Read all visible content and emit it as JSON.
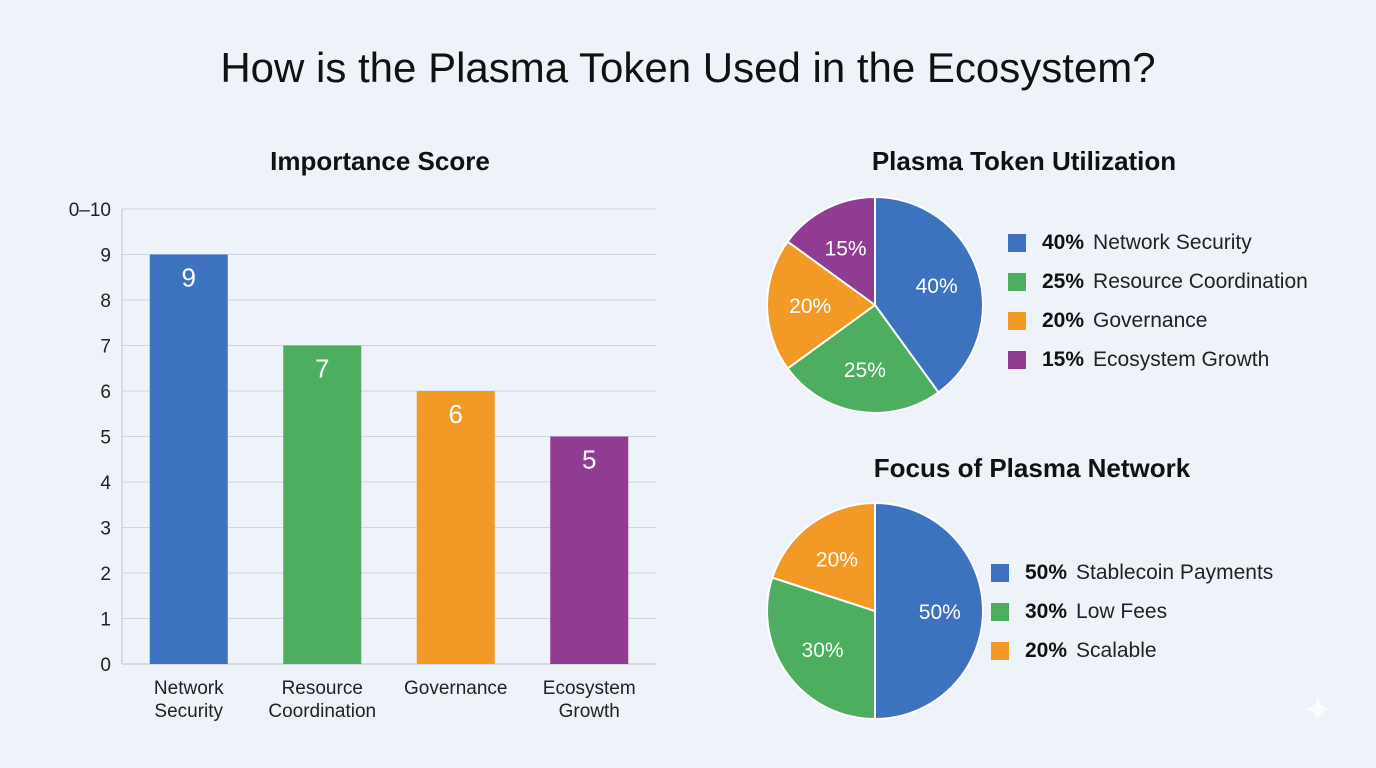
{
  "title": "How is the Plasma Token Used in the Ecosystem?",
  "chart_data": [
    {
      "type": "bar",
      "title": "Importance Score",
      "categories": [
        [
          "Network",
          "Security"
        ],
        [
          "Resource",
          "Coordination"
        ],
        [
          "Governance"
        ],
        [
          "Ecosystem",
          "Growth"
        ]
      ],
      "values": [
        9,
        7,
        6,
        5
      ],
      "data_labels": [
        "9",
        "7",
        "6",
        "5"
      ],
      "colors": [
        "#3d72bf",
        "#4cae5e",
        "#f29a25",
        "#913c93"
      ],
      "ylim": [
        0,
        10
      ],
      "yticks": [
        "0",
        "1",
        "2",
        "3",
        "4",
        "5",
        "6",
        "7",
        "8",
        "9",
        "0–10"
      ],
      "grid": true,
      "xlabel": "",
      "ylabel": ""
    },
    {
      "type": "pie",
      "title": "Plasma Token Utilization",
      "labels": [
        "Network Security",
        "Resource Coordination",
        "Governance",
        "Ecosystem Growth"
      ],
      "values": [
        40,
        25,
        20,
        15
      ],
      "value_labels": [
        "40%",
        "25%",
        "20%",
        "15%"
      ],
      "colors": [
        "#3d72bf",
        "#4cae5e",
        "#f29a25",
        "#913c93"
      ],
      "legend": "right"
    },
    {
      "type": "pie",
      "title": "Focus of Plasma Network",
      "labels": [
        "Stablecoin Payments",
        "Low Fees",
        "Scalable"
      ],
      "values": [
        50,
        30,
        20
      ],
      "value_labels": [
        "50%",
        "30%",
        "20%"
      ],
      "colors": [
        "#3d72bf",
        "#4cae5e",
        "#f29a25"
      ],
      "legend": "right"
    }
  ]
}
